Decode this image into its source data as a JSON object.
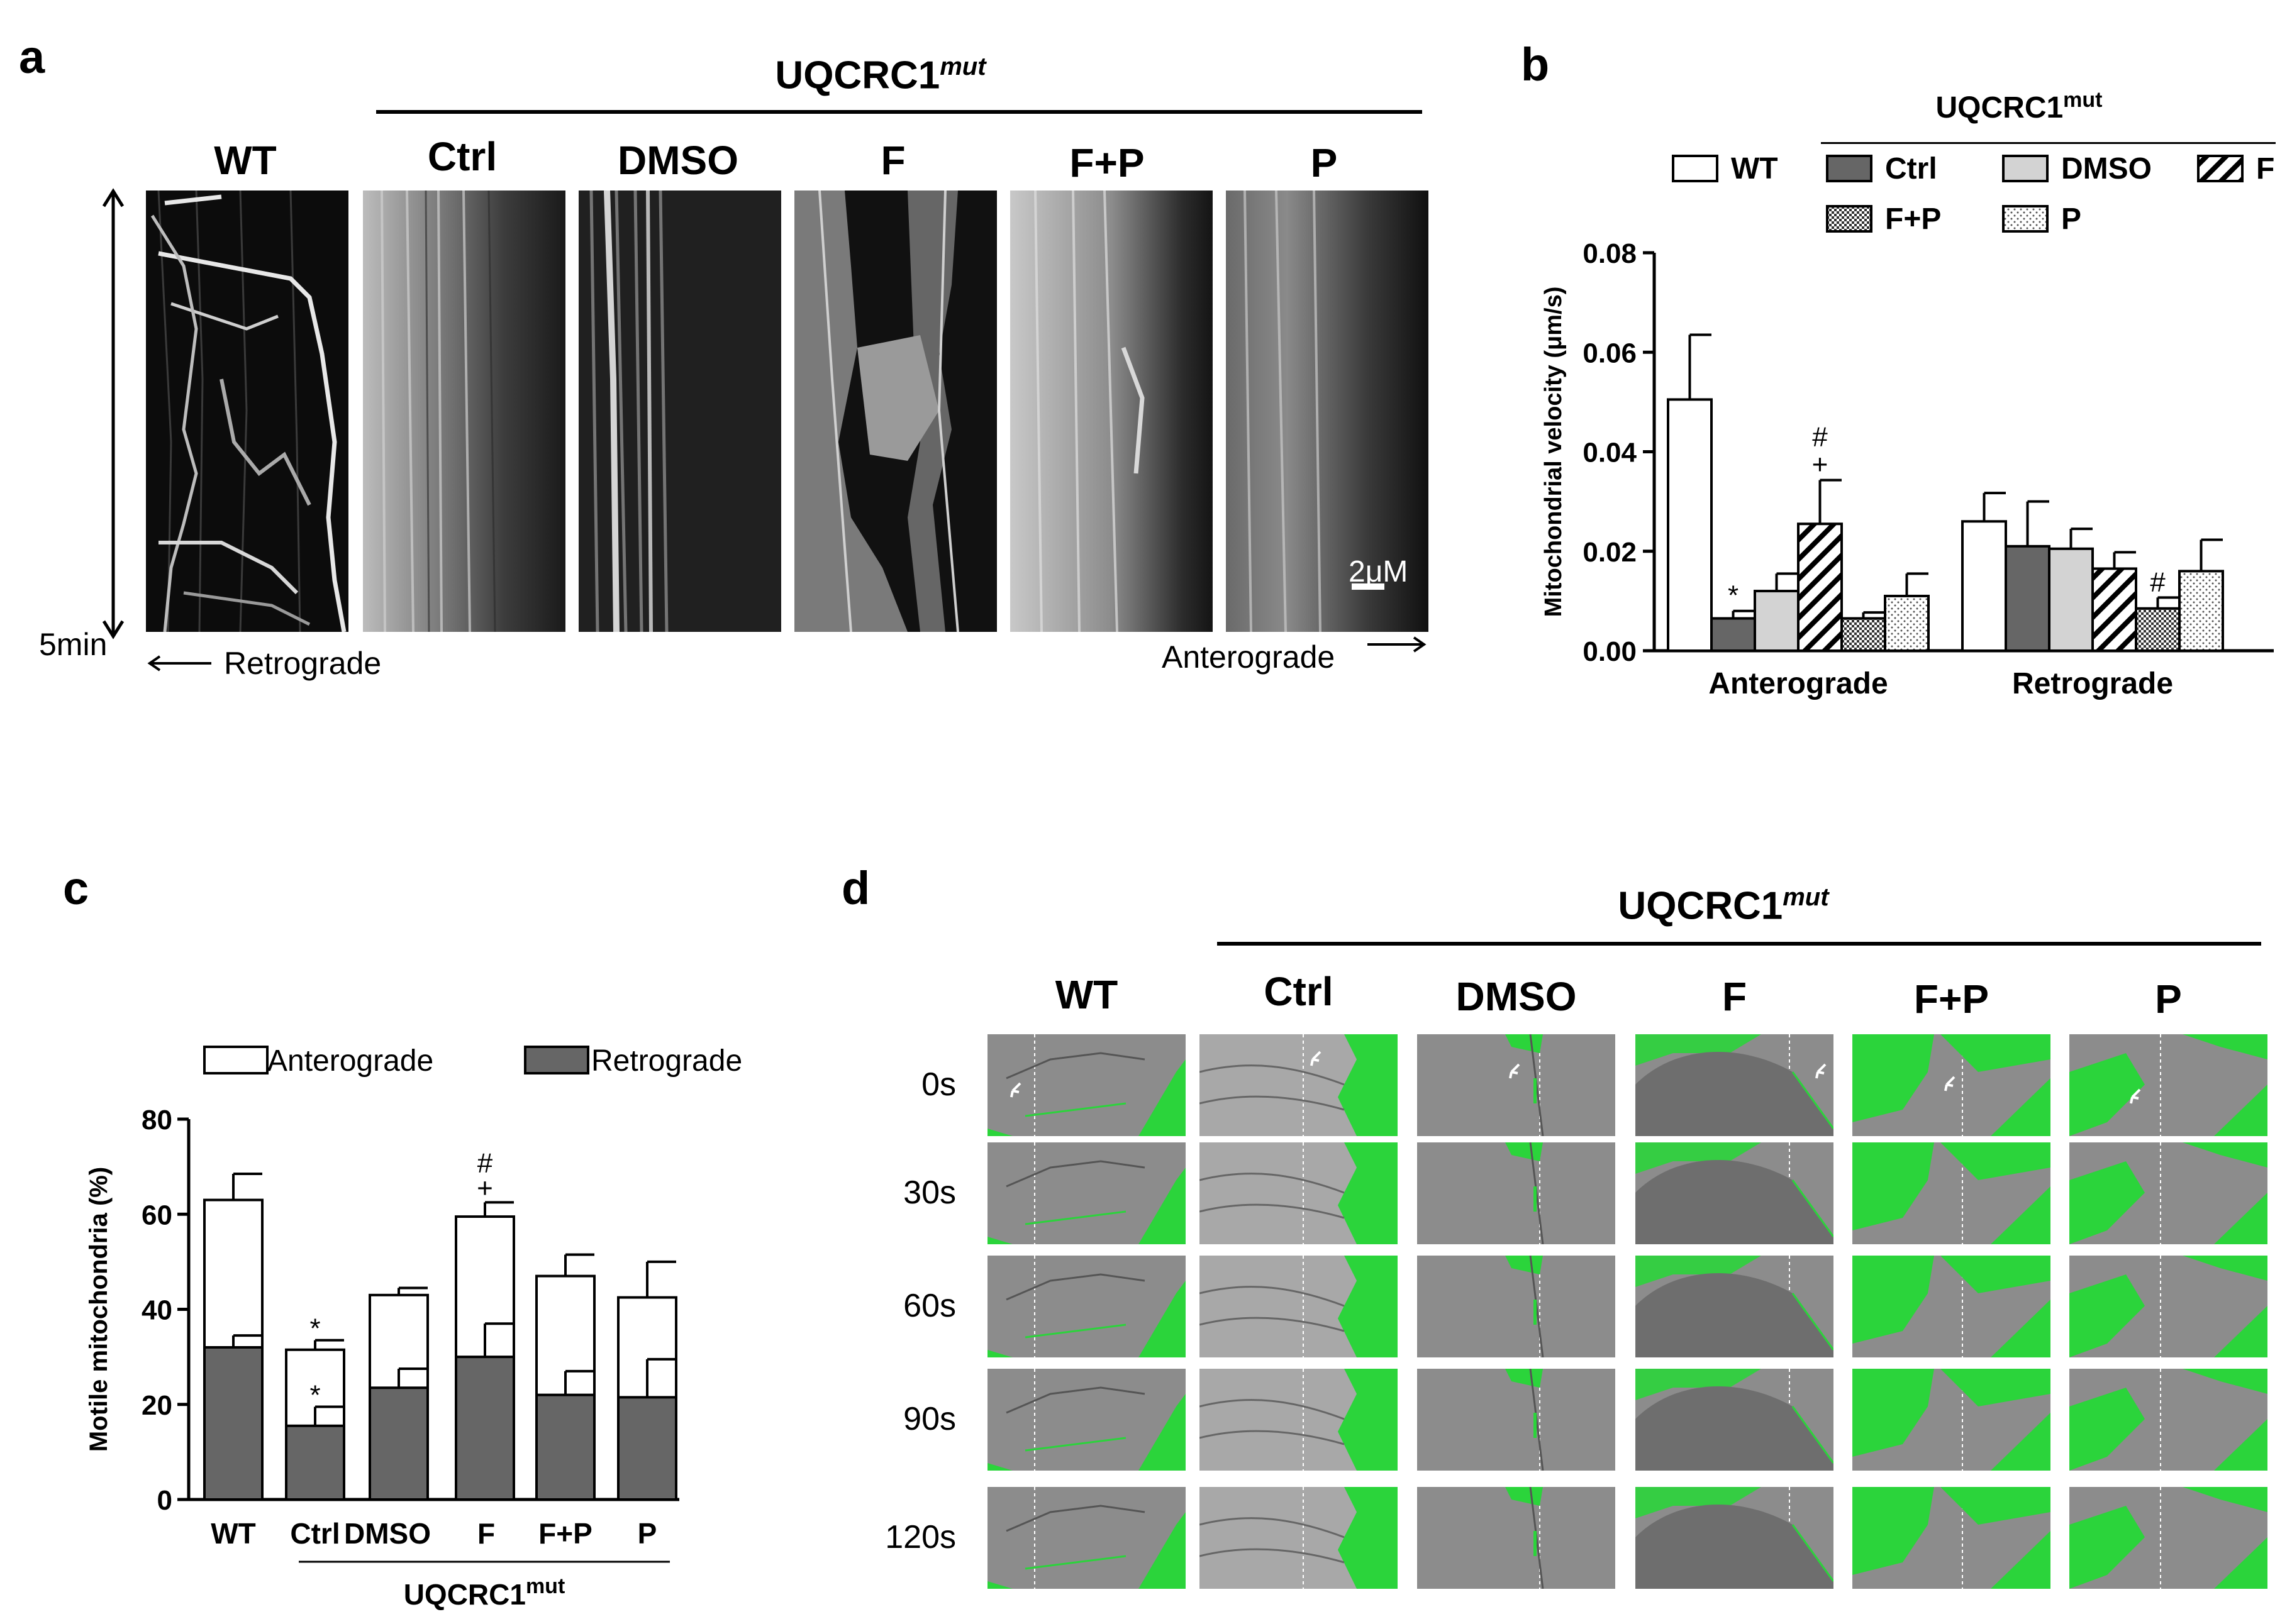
{
  "panel_a": {
    "letter": "a",
    "group_label": "UQCRC1",
    "group_sup": "mut",
    "columns": [
      "WT",
      "Ctrl",
      "DMSO",
      "F",
      "F+P",
      "P"
    ],
    "time_label": "5min",
    "retro_label": "Retrograde",
    "antero_label": "Anterograde",
    "scale_label": "2μM"
  },
  "panel_b": {
    "letter": "b",
    "group_label": "UQCRC1",
    "group_sup": "mut"
  },
  "panel_c": {
    "letter": "c",
    "group_label": "UQCRC1",
    "group_sup": "mut"
  },
  "panel_d": {
    "letter": "d",
    "group_label": "UQCRC1",
    "group_sup": "mut",
    "columns": [
      "WT",
      "Ctrl",
      "DMSO",
      "F",
      "F+P",
      "P"
    ],
    "rows": [
      "0s",
      "30s",
      "60s",
      "90s",
      "120s"
    ]
  },
  "chart_data": [
    {
      "type": "bar",
      "panel": "b",
      "ylabel": "Mitochondrial velocity (μm/s)",
      "ylim": [
        0,
        0.08
      ],
      "yticks": [
        "0.00",
        "0.02",
        "0.04",
        "0.06",
        "0.08"
      ],
      "categories": [
        "Anterograde",
        "Retrograde"
      ],
      "legend": [
        "WT",
        "Ctrl",
        "DMSO",
        "F",
        "F+P",
        "P"
      ],
      "series": [
        {
          "name": "WT",
          "values": [
            0.0505,
            0.026
          ],
          "errors": [
            0.013,
            0.0057
          ]
        },
        {
          "name": "Ctrl",
          "values": [
            0.0065,
            0.021
          ],
          "errors": [
            0.0015,
            0.009
          ]
        },
        {
          "name": "DMSO",
          "values": [
            0.012,
            0.0205
          ],
          "errors": [
            0.0035,
            0.004
          ]
        },
        {
          "name": "F",
          "values": [
            0.0255,
            0.0165
          ],
          "errors": [
            0.0088,
            0.0033
          ]
        },
        {
          "name": "F+P",
          "values": [
            0.0065,
            0.0085
          ],
          "errors": [
            0.0012,
            0.0022
          ]
        },
        {
          "name": "P",
          "values": [
            0.011,
            0.016
          ],
          "errors": [
            0.0045,
            0.0063
          ]
        }
      ],
      "annotations": [
        {
          "category": "Anterograde",
          "series": "Ctrl",
          "text": "*"
        },
        {
          "category": "Anterograde",
          "series": "F",
          "text": "+"
        },
        {
          "category": "Anterograde",
          "series": "F",
          "text": "#"
        },
        {
          "category": "Retrograde",
          "series": "F+P",
          "text": "#"
        }
      ]
    },
    {
      "type": "bar",
      "panel": "c",
      "stacked": true,
      "ylabel": "Motile mitochondria (%)",
      "ylim": [
        0,
        80
      ],
      "yticks": [
        "0",
        "20",
        "40",
        "60",
        "80"
      ],
      "categories": [
        "WT",
        "Ctrl",
        "DMSO",
        "F",
        "F+P",
        "P"
      ],
      "legend": [
        "Anterograde",
        "Retrograde"
      ],
      "series": [
        {
          "name": "Retrograde",
          "values": [
            32,
            15.5,
            23.5,
            30,
            22,
            21.5
          ],
          "errors": [
            2.5,
            4,
            4,
            7,
            5,
            8
          ]
        },
        {
          "name": "Anterograde",
          "totals": [
            63,
            31.5,
            43,
            59.5,
            47,
            42.5
          ],
          "errors": [
            5.5,
            2,
            1.5,
            3,
            4.5,
            7.5
          ]
        }
      ],
      "annotations": [
        {
          "category": "Ctrl",
          "text": "*"
        },
        {
          "category": "Ctrl",
          "text": "*"
        },
        {
          "category": "F",
          "text": "+"
        },
        {
          "category": "F",
          "text": "#"
        }
      ]
    }
  ]
}
